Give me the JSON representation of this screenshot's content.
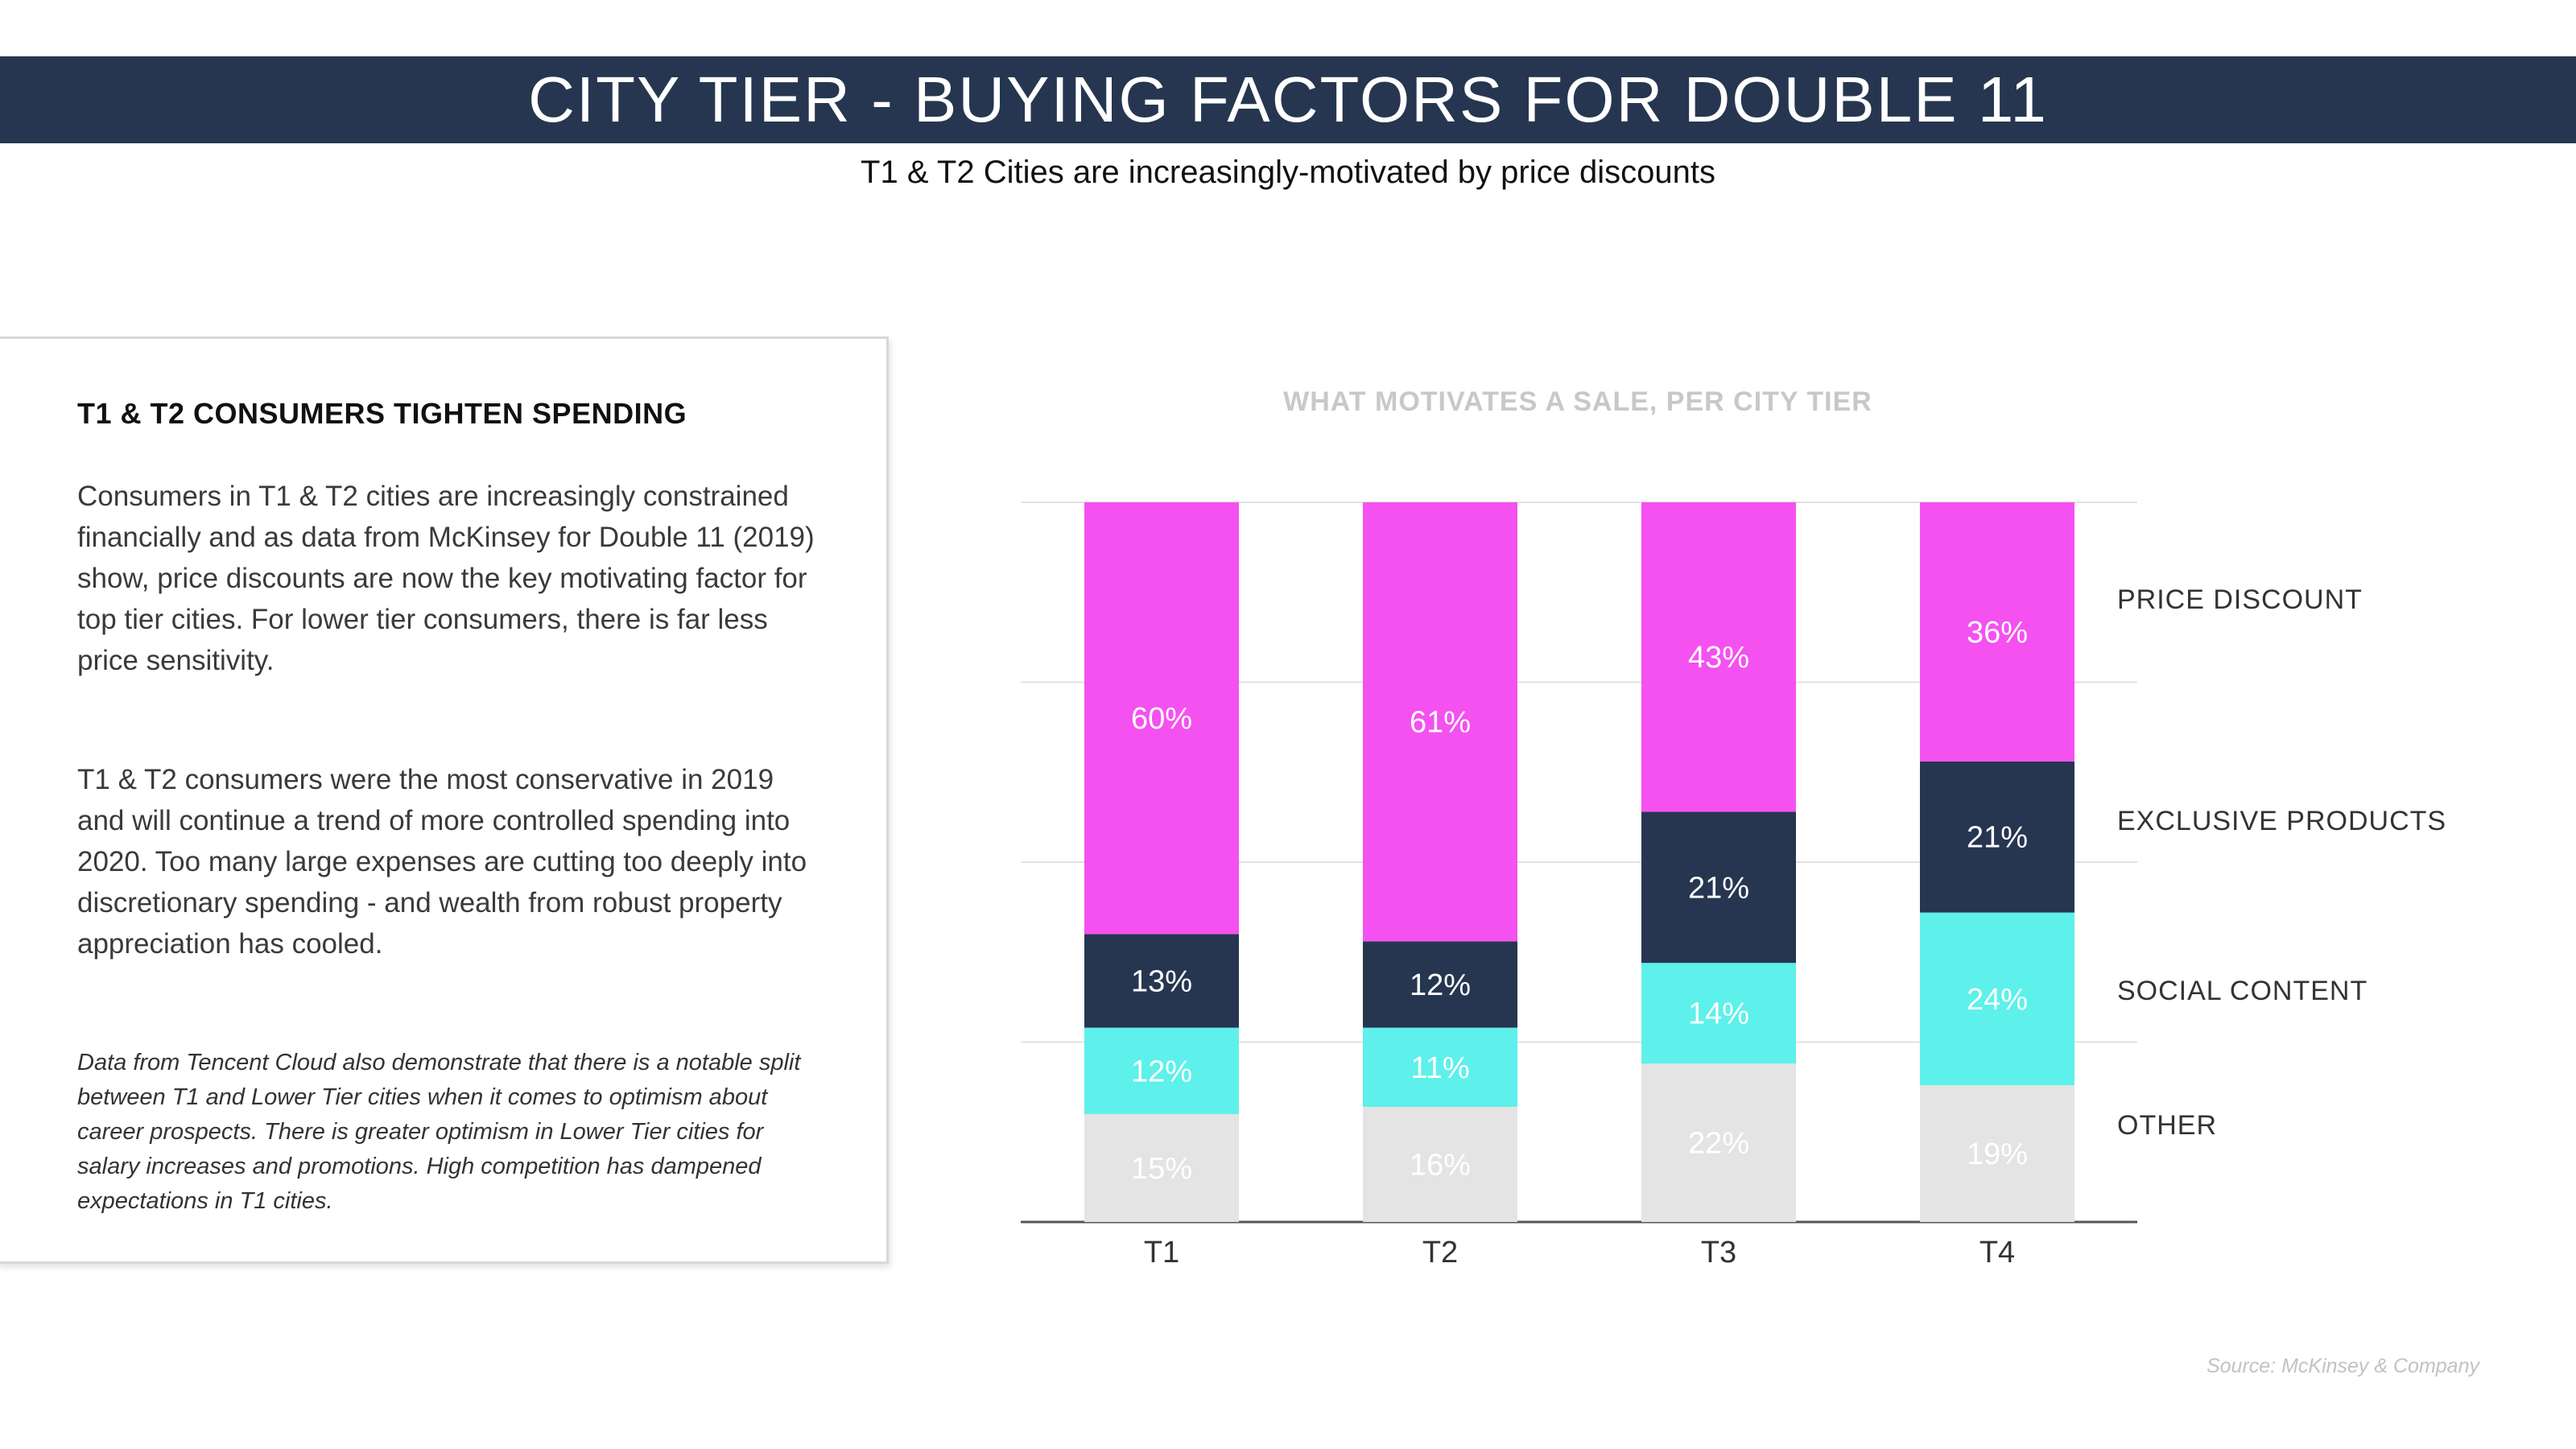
{
  "header": {
    "title": "CITY TIER - BUYING FACTORS FOR DOUBLE 11",
    "subtitle": "T1 & T2 Cities are increasingly-motivated by price discounts"
  },
  "panel": {
    "heading": "T1 & T2 CONSUMERS TIGHTEN SPENDING",
    "paragraph_1": "Consumers in T1 & T2 cities are increasingly constrained financially and as data from McKinsey for Double 11 (2019) show, price discounts are now the key motivating factor for top tier cities. For lower tier consumers, there is far less price sensitivity.",
    "paragraph_2": "T1 & T2 consumers were the most conservative in 2019 and will continue a trend of more controlled spending into 2020. Too many large expenses are cutting too deeply into discretionary spending - and wealth from robust property appreciation has cooled.",
    "note": "Data from Tencent Cloud also demonstrate that there is a notable split between T1 and Lower Tier cities when it comes to optimism about career prospects. There is greater optimism in Lower Tier cities for salary increases and promotions. High competition has dampened expectations in T1 cities."
  },
  "source": "Source: McKinsey & Company",
  "colors": {
    "price_discount": "#f451f0",
    "exclusive_products": "#263650",
    "social_content": "#5ef0ea",
    "other": "#e4e4e4"
  },
  "chart_data": {
    "type": "bar",
    "stacked": true,
    "title": "WHAT MOTIVATES A SALE, PER CITY TIER",
    "xlabel": "",
    "ylabel": "",
    "ylim": [
      0,
      100
    ],
    "grid": true,
    "legend_position": "right",
    "categories": [
      "T1",
      "T2",
      "T3",
      "T4"
    ],
    "series": [
      {
        "name": "OTHER",
        "values": [
          15,
          16,
          22,
          19
        ],
        "color": "#e4e4e4",
        "label_color": "#ffffff"
      },
      {
        "name": "SOCIAL CONTENT",
        "values": [
          12,
          11,
          14,
          24
        ],
        "color": "#5ef0ea",
        "label_color": "#ffffff"
      },
      {
        "name": "EXCLUSIVE PRODUCTS",
        "values": [
          13,
          12,
          21,
          21
        ],
        "color": "#263650",
        "label_color": "#ffffff"
      },
      {
        "name": "PRICE DISCOUNT",
        "values": [
          60,
          61,
          43,
          36
        ],
        "color": "#f451f0",
        "label_color": "#ffffff"
      }
    ],
    "data_labels": [
      [
        "15%",
        "16%",
        "22%",
        "19%"
      ],
      [
        "12%",
        "11%",
        "14%",
        "24%"
      ],
      [
        "13%",
        "12%",
        "21%",
        "21%"
      ],
      [
        "60%",
        "61%",
        "43%",
        "36%"
      ]
    ]
  }
}
